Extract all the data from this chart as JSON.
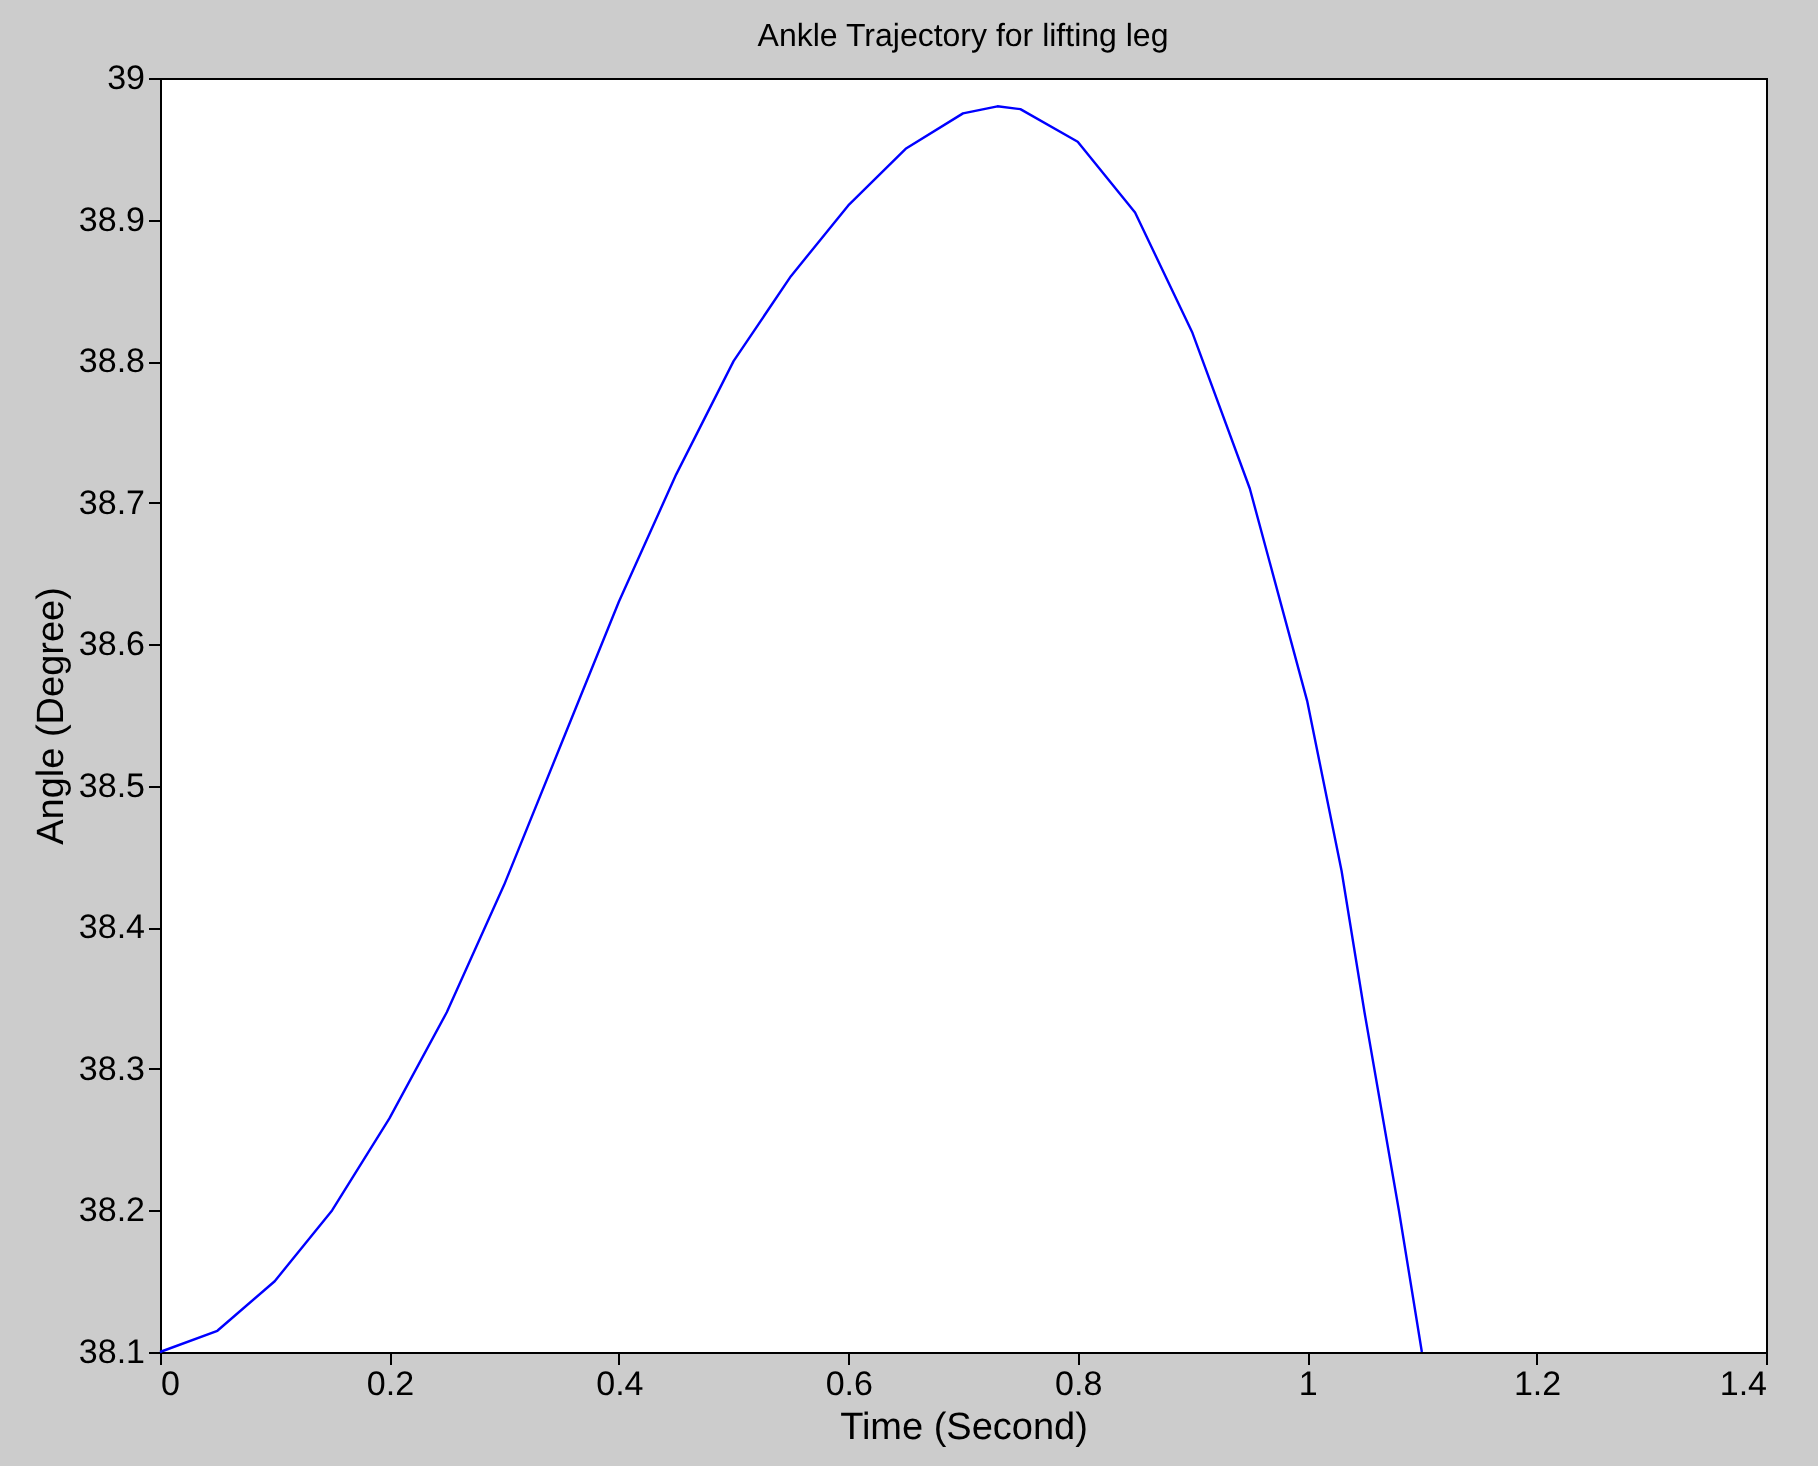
{
  "chart_data": {
    "type": "line",
    "title": "Ankle Trajectory for lifting leg",
    "xlabel": "Time (Second)",
    "ylabel": "Angle (Degree)",
    "x": [
      0,
      0.05,
      0.1,
      0.15,
      0.2,
      0.25,
      0.3,
      0.35,
      0.4,
      0.45,
      0.5,
      0.55,
      0.6,
      0.65,
      0.7,
      0.73,
      0.75,
      0.8,
      0.85,
      0.9,
      0.95,
      1.0,
      1.03,
      1.05,
      1.08,
      1.1
    ],
    "series": [
      {
        "color": "#0000ff",
        "values": [
          38.1,
          38.115,
          38.15,
          38.2,
          38.265,
          38.34,
          38.43,
          38.53,
          38.63,
          38.72,
          38.8,
          38.86,
          38.91,
          38.95,
          38.975,
          38.98,
          38.978,
          38.955,
          38.905,
          38.82,
          38.71,
          38.56,
          38.44,
          38.34,
          38.2,
          38.1
        ]
      }
    ],
    "xlim": [
      0,
      1.4
    ],
    "xticks": [
      0,
      0.2,
      0.4,
      0.6,
      0.8,
      1,
      1.2,
      1.4
    ],
    "ylim": [
      38.1,
      39
    ],
    "yticks": [
      38.1,
      38.2,
      38.3,
      38.4,
      38.5,
      38.6,
      38.7,
      38.8,
      38.9,
      39
    ],
    "grid": false,
    "marker": "none",
    "line_style": "solid"
  }
}
